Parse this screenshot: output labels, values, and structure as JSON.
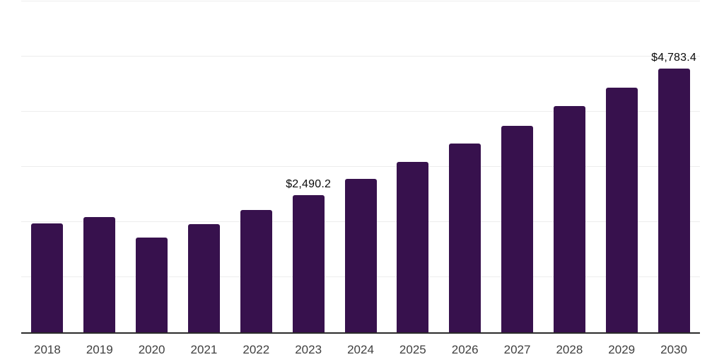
{
  "chart": {
    "colors": {
      "bar": "#37114D",
      "gridline": "#ededed",
      "axis_line": "#2b2b2b",
      "tick_label": "#404040",
      "data_label": "#0a0a0a",
      "background": "#ffffff"
    }
  },
  "chart_data": {
    "type": "bar",
    "categories": [
      "2018",
      "2019",
      "2020",
      "2021",
      "2022",
      "2023",
      "2024",
      "2025",
      "2026",
      "2027",
      "2028",
      "2029",
      "2030"
    ],
    "values": [
      1980,
      2090,
      1715,
      1960,
      2220,
      2490.2,
      2780,
      3090,
      3420,
      3750,
      4100,
      4440,
      4783.4
    ],
    "data_labels": [
      "",
      "",
      "",
      "",
      "",
      "$2,490.2",
      "",
      "",
      "",
      "",
      "",
      "",
      "$4,783.4"
    ],
    "ylim": [
      0,
      6000
    ],
    "gridline_interval": 1000,
    "grid": "horizontal",
    "legend": "none",
    "y_axis_tick_labels": "none",
    "title": ""
  }
}
